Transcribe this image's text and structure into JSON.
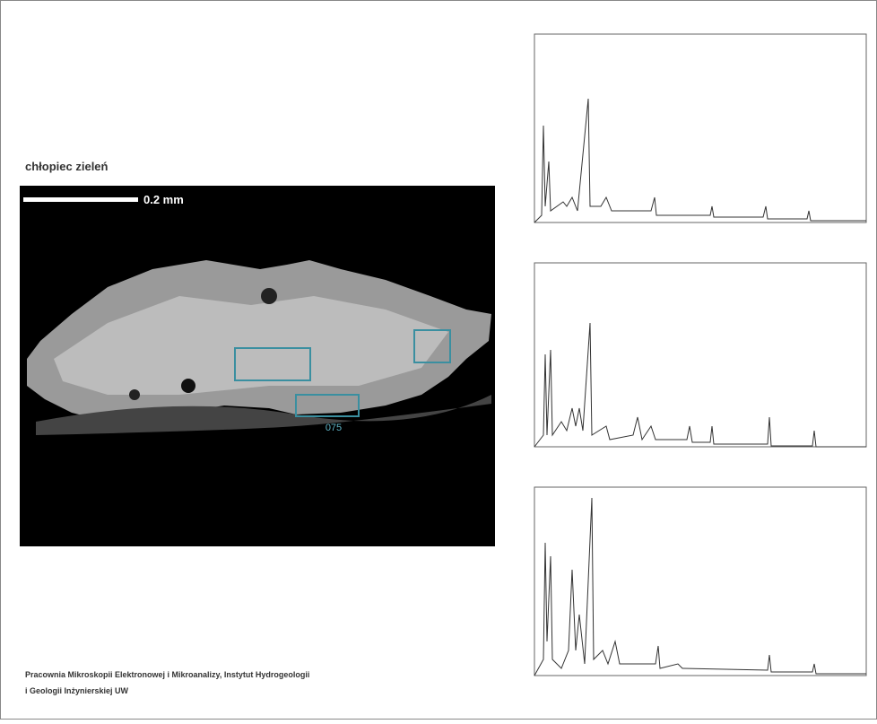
{
  "title": "chłopiec zieleń",
  "scale_bar": "0.2 mm",
  "image_label": "075",
  "caption": [
    "Pracownia Mikroskopii Elektronowej i Mikroanalizy, Instytut Hydrogeologii",
    "i Geologii Inżynierskiej UW"
  ]
}
